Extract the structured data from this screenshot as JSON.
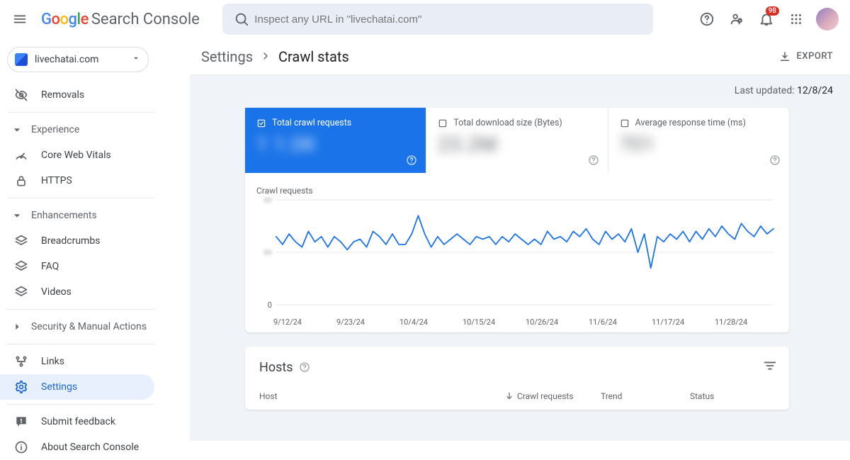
{
  "header": {
    "logo_text_google": "Google",
    "logo_text_product": "Search Console",
    "search_placeholder": "Inspect any URL in \"livechatai.com\"",
    "notification_count": "98"
  },
  "property_selector": {
    "label": "livechatai.com"
  },
  "sidebar": {
    "items_top": [
      {
        "label": "Removals",
        "icon": "eye-off"
      }
    ],
    "group_experience": {
      "title": "Experience",
      "items": [
        {
          "label": "Core Web Vitals",
          "icon": "speed"
        },
        {
          "label": "HTTPS",
          "icon": "lock"
        }
      ]
    },
    "group_enhancements": {
      "title": "Enhancements",
      "items": [
        {
          "label": "Breadcrumbs",
          "icon": "layers"
        },
        {
          "label": "FAQ",
          "icon": "layers"
        },
        {
          "label": "Videos",
          "icon": "layers"
        }
      ]
    },
    "security_title": "Security & Manual Actions",
    "links_label": "Links",
    "settings_label": "Settings",
    "feedback_label": "Submit feedback",
    "about_label": "About Search Console"
  },
  "breadcrumb": {
    "root": "Settings",
    "leaf": "Crawl stats"
  },
  "export_label": "Export",
  "last_updated": {
    "label": "Last updated: ",
    "value": "12/8/24"
  },
  "metrics": [
    {
      "label": "Total crawl requests",
      "value_placeholder": "1 1.0K",
      "selected": true
    },
    {
      "label": "Total download size (Bytes)",
      "value_placeholder": "23.2M",
      "selected": false
    },
    {
      "label": "Average response time (ms)",
      "value_placeholder": "701",
      "selected": false
    }
  ],
  "chart": {
    "title": "Crawl requests",
    "type": "line",
    "series_color": "#1a73e8",
    "grid_color": "#e8eaed",
    "axis_text_color": "#5f6368",
    "y_zero_label": "0",
    "ylim": [
      0,
      4
    ],
    "y_ticks": [
      0,
      2,
      4
    ],
    "x_labels": [
      "9/12/24",
      "9/23/24",
      "10/4/24",
      "10/15/24",
      "10/26/24",
      "11/6/24",
      "11/17/24",
      "11/28/24"
    ],
    "values": [
      2.6,
      2.3,
      2.7,
      2.4,
      2.2,
      2.8,
      2.4,
      2.6,
      2.2,
      2.6,
      2.4,
      2.1,
      2.4,
      2.5,
      2.2,
      2.8,
      2.6,
      2.3,
      2.7,
      2.3,
      2.3,
      2.7,
      3.4,
      2.7,
      2.2,
      2.6,
      2.3,
      2.5,
      2.7,
      2.5,
      2.3,
      2.6,
      2.5,
      2.6,
      2.3,
      2.6,
      2.4,
      2.7,
      2.5,
      2.3,
      2.5,
      2.3,
      2.8,
      2.5,
      2.6,
      2.4,
      2.8,
      2.6,
      2.9,
      2.5,
      2.3,
      2.8,
      2.5,
      2.7,
      2.4,
      2.9,
      2.0,
      2.7,
      1.4,
      2.6,
      2.4,
      2.7,
      2.5,
      2.8,
      2.4,
      2.8,
      2.5,
      2.9,
      2.6,
      3.0,
      2.7,
      2.5,
      3.1,
      2.8,
      2.6,
      3.0,
      2.7,
      2.9
    ]
  },
  "hosts": {
    "title": "Hosts",
    "columns": {
      "host": "Host",
      "requests": "Crawl requests",
      "trend": "Trend",
      "status": "Status"
    }
  }
}
